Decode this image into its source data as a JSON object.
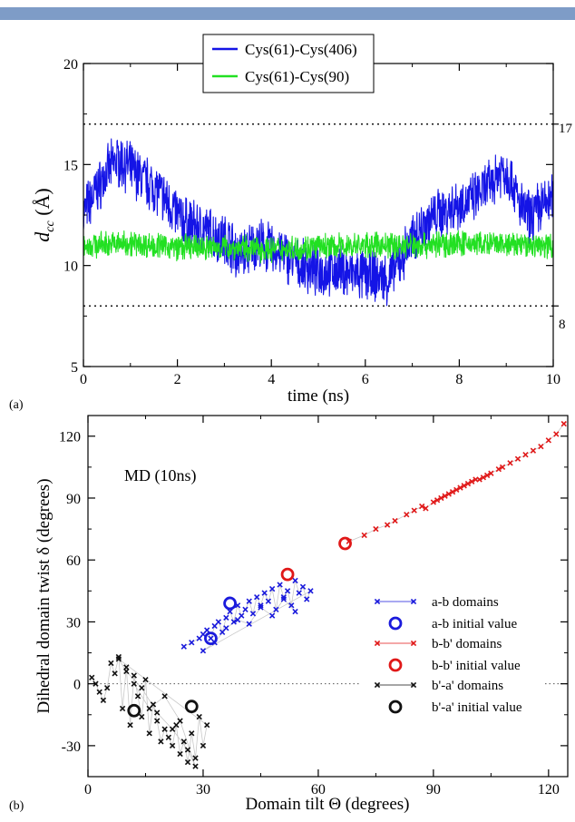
{
  "colors": {
    "header_bar": "#7e9cc7",
    "ab": "#1a1adc",
    "bb": "#e01818",
    "ba": "#111111",
    "cc406": "#1414e6",
    "cc90": "#22e022",
    "connector": "#c8c8c8"
  },
  "panel_a": {
    "label": "(a)",
    "xlabel": "time (ns)",
    "ylabel_main": "d",
    "ylabel_sub": "cc",
    "ylabel_unit": " (Å)",
    "ref_labels": [
      "17",
      "8"
    ]
  },
  "panel_b": {
    "label": "(b)",
    "annotation": "MD (10ns)",
    "xlabel": "Domain tilt Θ (degrees)",
    "ylabel": "Dihedral domain twist δ (degrees)"
  },
  "chart_data": [
    {
      "type": "line",
      "xlabel": "time (ns)",
      "ylabel": "dcc (Å)",
      "xlim": [
        0,
        10
      ],
      "ylim": [
        5,
        20
      ],
      "xticks": [
        0,
        2,
        4,
        6,
        8,
        10
      ],
      "yticks": [
        5,
        10,
        15,
        20
      ],
      "grid": false,
      "legend_position": "top-center",
      "reference_lines": [
        17,
        8
      ],
      "series": [
        {
          "name": "Cys(61)-Cys(406)",
          "x": [
            0,
            0.25,
            0.5,
            0.7,
            0.9,
            1.1,
            1.3,
            1.5,
            1.7,
            1.9,
            2.1,
            2.3,
            2.5,
            2.7,
            2.9,
            3.1,
            3.3,
            3.5,
            3.7,
            3.9,
            4.1,
            4.3,
            4.5,
            4.7,
            4.9,
            5.1,
            5.3,
            5.5,
            5.7,
            5.9,
            6.1,
            6.3,
            6.5,
            6.7,
            6.9,
            7.1,
            7.3,
            7.5,
            7.7,
            7.9,
            8.1,
            8.3,
            8.5,
            8.7,
            8.9,
            9.1,
            9.3,
            9.5,
            9.7,
            10
          ],
          "values": [
            12.6,
            13.6,
            14.6,
            15.2,
            15.0,
            14.6,
            14.2,
            13.9,
            13.4,
            12.8,
            12.3,
            12.0,
            11.8,
            11.6,
            11.4,
            11.2,
            10.5,
            10.8,
            11.1,
            10.9,
            10.7,
            10.5,
            10.1,
            9.9,
            9.8,
            9.7,
            9.8,
            9.7,
            9.6,
            9.5,
            9.5,
            9.4,
            9.3,
            10.1,
            10.9,
            11.6,
            12.1,
            12.5,
            12.7,
            13.0,
            13.1,
            13.3,
            13.7,
            14.1,
            14.8,
            14.3,
            12.9,
            12.4,
            12.9,
            13.3
          ]
        },
        {
          "name": "Cys(61)-Cys(90)",
          "x": [
            0,
            1,
            2,
            3,
            4,
            5,
            6,
            7,
            8,
            9,
            10
          ],
          "values": [
            11.0,
            11.1,
            10.9,
            10.9,
            10.8,
            10.9,
            11.0,
            11.0,
            11.1,
            11.0,
            11.0
          ]
        }
      ]
    },
    {
      "type": "scatter",
      "xlabel": "Domain tilt Θ (degrees)",
      "ylabel": "Dihedral domain twist δ (degrees)",
      "xlim": [
        0,
        125
      ],
      "ylim": [
        -45,
        130
      ],
      "xticks": [
        0,
        30,
        60,
        90,
        120
      ],
      "yticks": [
        -30,
        0,
        30,
        60,
        90,
        120
      ],
      "grid": false,
      "legend_position": "center-right",
      "reference_lines": [
        0
      ],
      "series": [
        {
          "name": "a-b domains",
          "x": [
            25,
            27,
            29,
            30,
            31,
            32,
            33,
            34,
            35,
            36,
            37,
            38,
            39,
            40,
            41,
            42,
            43,
            44,
            45,
            46,
            47,
            48,
            49,
            50,
            51,
            52,
            53,
            54,
            55,
            56,
            57,
            58,
            30,
            33,
            36,
            39,
            42,
            45,
            48,
            51,
            54
          ],
          "values": [
            18,
            20,
            22,
            24,
            26,
            22,
            28,
            30,
            25,
            32,
            35,
            30,
            38,
            33,
            36,
            40,
            34,
            42,
            38,
            44,
            40,
            46,
            36,
            48,
            42,
            45,
            38,
            50,
            44,
            47,
            41,
            45,
            16,
            20,
            27,
            31,
            29,
            37,
            33,
            41,
            35
          ]
        },
        {
          "name": "a-b initial value",
          "x": [
            37,
            32
          ],
          "values": [
            39,
            22
          ]
        },
        {
          "name": "b-b' domains",
          "x": [
            68,
            72,
            75,
            78,
            80,
            83,
            85,
            87,
            88,
            90,
            91,
            92,
            93,
            94,
            95,
            96,
            97,
            98,
            99,
            100,
            101,
            102,
            103,
            104,
            105,
            107,
            108,
            110,
            112,
            114,
            116,
            118,
            120,
            122,
            124
          ],
          "values": [
            69,
            72,
            75,
            77,
            79,
            82,
            84,
            86,
            85,
            88,
            89,
            90,
            91,
            92,
            93,
            94,
            95,
            96,
            97,
            98,
            99,
            99,
            100,
            101,
            102,
            104,
            105,
            107,
            109,
            111,
            113,
            115,
            118,
            121,
            126
          ]
        },
        {
          "name": "b-b' initial value",
          "x": [
            52,
            67
          ],
          "values": [
            53,
            68
          ]
        },
        {
          "name": "b'-a' domains",
          "x": [
            1,
            2,
            3,
            4,
            5,
            6,
            7,
            8,
            9,
            10,
            11,
            12,
            13,
            14,
            15,
            16,
            17,
            18,
            19,
            20,
            21,
            22,
            23,
            24,
            25,
            26,
            27,
            28,
            29,
            30,
            31,
            8,
            10,
            14,
            18,
            22,
            26,
            28,
            24,
            20,
            16,
            12
          ],
          "values": [
            3,
            0,
            -4,
            -8,
            -2,
            10,
            5,
            13,
            -12,
            8,
            -20,
            4,
            -6,
            -16,
            2,
            -24,
            -10,
            -18,
            -28,
            -22,
            -26,
            -30,
            -20,
            -34,
            -28,
            -38,
            -24,
            -36,
            -16,
            -30,
            -20,
            12,
            6,
            -2,
            -14,
            -22,
            -32,
            -40,
            -18,
            -6,
            -12,
            0
          ]
        },
        {
          "name": "b'-a' initial value",
          "x": [
            12,
            27
          ],
          "values": [
            -13,
            -11
          ]
        }
      ]
    }
  ]
}
